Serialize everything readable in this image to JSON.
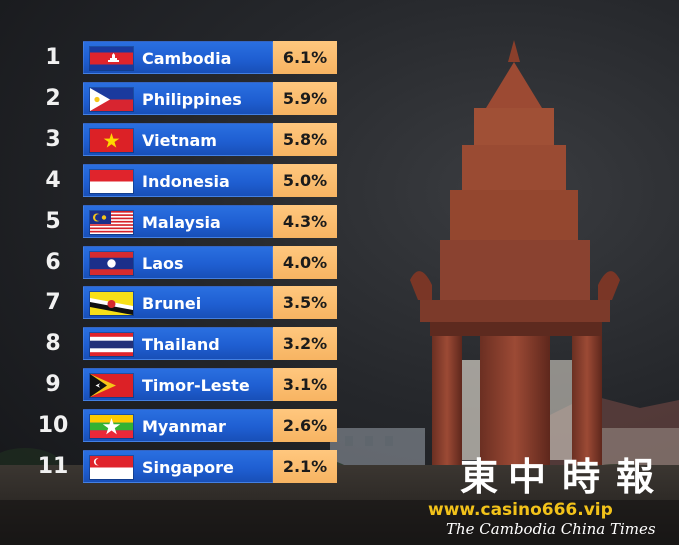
{
  "chart_data": {
    "type": "table",
    "rows": [
      {
        "rank": "1",
        "country": "Cambodia",
        "value": "6.1%",
        "flag": "flag-cambodia"
      },
      {
        "rank": "2",
        "country": "Philippines",
        "value": "5.9%",
        "flag": "flag-philippines"
      },
      {
        "rank": "3",
        "country": "Vietnam",
        "value": "5.8%",
        "flag": "flag-vietnam"
      },
      {
        "rank": "4",
        "country": "Indonesia",
        "value": "5.0%",
        "flag": "flag-indonesia"
      },
      {
        "rank": "5",
        "country": "Malaysia",
        "value": "4.3%",
        "flag": "flag-malaysia"
      },
      {
        "rank": "6",
        "country": "Laos",
        "value": "4.0%",
        "flag": "flag-laos"
      },
      {
        "rank": "7",
        "country": "Brunei",
        "value": "3.5%",
        "flag": "flag-brunei"
      },
      {
        "rank": "8",
        "country": "Thailand",
        "value": "3.2%",
        "flag": "flag-thailand"
      },
      {
        "rank": "9",
        "country": "Timor-Leste",
        "value": "3.1%",
        "flag": "flag-timor-leste"
      },
      {
        "rank": "10",
        "country": "Myanmar",
        "value": "2.6%",
        "flag": "flag-myanmar"
      },
      {
        "rank": "11",
        "country": "Singapore",
        "value": "2.1%",
        "flag": "flag-singapore"
      }
    ]
  },
  "watermark": {
    "chars": [
      "東",
      "中",
      "時",
      "報"
    ],
    "url": "www.casino666.vip",
    "english": "The Cambodia China Times"
  },
  "colors": {
    "bar_blue": "#1f5fd2",
    "value_orange": "#f7b462",
    "url_yellow": "#f2c21a"
  }
}
